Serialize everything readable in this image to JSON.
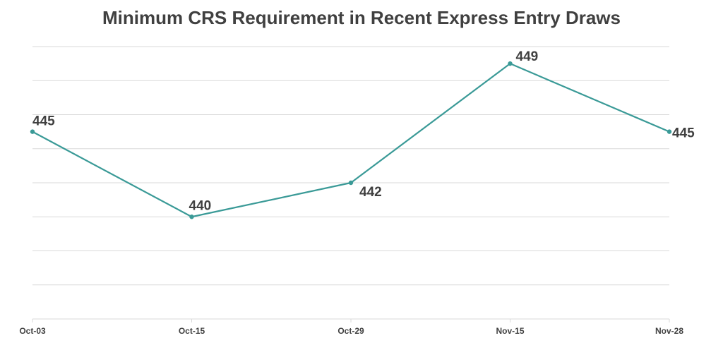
{
  "chart_data": {
    "type": "line",
    "title": "Minimum CRS Requirement in Recent Express Entry Draws",
    "categories": [
      "Oct-03",
      "Oct-15",
      "Oct-29",
      "Nov-15",
      "Nov-28"
    ],
    "series": [
      {
        "values": [
          445,
          440,
          442,
          449,
          445
        ]
      }
    ],
    "ylim": [
      434,
      450
    ],
    "y_ticks_shown": false,
    "grid": true,
    "data_labels": true,
    "line_color": "#3a9a97",
    "grid_color": "#d9d9d9",
    "text_color": "#404040"
  }
}
